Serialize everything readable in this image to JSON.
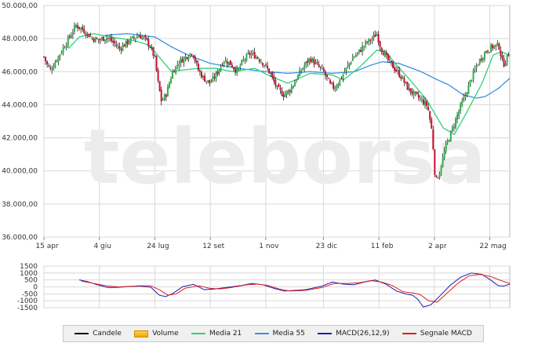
{
  "chart_data": [
    {
      "type": "candlestick",
      "ylim": [
        36000,
        50000
      ],
      "yticks": [
        "36.000,00",
        "38.000,00",
        "40.000,00",
        "42.000,00",
        "44.000,00",
        "46.000,00",
        "48.000,00",
        "50.000,00"
      ],
      "ytick_values": [
        36000,
        38000,
        40000,
        42000,
        44000,
        46000,
        48000,
        50000
      ],
      "x_range_days": [
        0,
        420
      ],
      "xticks": [
        "15 apr",
        "4 giu",
        "24 lug",
        "12 set",
        "1 nov",
        "23 dic",
        "11 feb",
        "2 apr",
        "22 mag"
      ],
      "xtick_days": [
        0,
        50,
        100,
        150,
        200,
        252,
        302,
        352,
        402
      ],
      "close_anchors": [
        [
          0,
          46900
        ],
        [
          3,
          46400
        ],
        [
          6,
          46100
        ],
        [
          12,
          46800
        ],
        [
          18,
          47500
        ],
        [
          24,
          48200
        ],
        [
          29,
          48800
        ],
        [
          34,
          48600
        ],
        [
          39,
          48300
        ],
        [
          44,
          48000
        ],
        [
          50,
          47900
        ],
        [
          56,
          48100
        ],
        [
          62,
          47800
        ],
        [
          68,
          47400
        ],
        [
          74,
          47700
        ],
        [
          80,
          48000
        ],
        [
          86,
          48200
        ],
        [
          92,
          47900
        ],
        [
          96,
          47500
        ],
        [
          100,
          46800
        ],
        [
          103,
          45300
        ],
        [
          106,
          44200
        ],
        [
          110,
          44600
        ],
        [
          116,
          46000
        ],
        [
          122,
          46600
        ],
        [
          128,
          46900
        ],
        [
          134,
          47200
        ],
        [
          139,
          46100
        ],
        [
          144,
          45600
        ],
        [
          150,
          45300
        ],
        [
          156,
          45900
        ],
        [
          162,
          46700
        ],
        [
          168,
          46500
        ],
        [
          174,
          46000
        ],
        [
          180,
          46700
        ],
        [
          186,
          47100
        ],
        [
          192,
          46900
        ],
        [
          198,
          46500
        ],
        [
          204,
          45900
        ],
        [
          210,
          45000
        ],
        [
          216,
          44600
        ],
        [
          222,
          44900
        ],
        [
          228,
          45600
        ],
        [
          234,
          46300
        ],
        [
          240,
          46800
        ],
        [
          246,
          46400
        ],
        [
          252,
          46000
        ],
        [
          258,
          45200
        ],
        [
          262,
          45000
        ],
        [
          266,
          45400
        ],
        [
          272,
          46100
        ],
        [
          278,
          46800
        ],
        [
          284,
          47200
        ],
        [
          290,
          47700
        ],
        [
          296,
          48000
        ],
        [
          300,
          48300
        ],
        [
          304,
          47400
        ],
        [
          310,
          46700
        ],
        [
          316,
          46200
        ],
        [
          322,
          45700
        ],
        [
          328,
          45000
        ],
        [
          334,
          44600
        ],
        [
          340,
          44300
        ],
        [
          346,
          43900
        ],
        [
          350,
          42300
        ],
        [
          353,
          39300
        ],
        [
          357,
          40000
        ],
        [
          362,
          41400
        ],
        [
          368,
          42500
        ],
        [
          374,
          43600
        ],
        [
          380,
          44600
        ],
        [
          386,
          45700
        ],
        [
          392,
          46600
        ],
        [
          398,
          47200
        ],
        [
          404,
          47500
        ],
        [
          410,
          47600
        ],
        [
          414,
          46400
        ],
        [
          418,
          46900
        ],
        [
          420,
          47200
        ]
      ],
      "ma21_anchors": [
        [
          22,
          47400
        ],
        [
          32,
          48100
        ],
        [
          45,
          48300
        ],
        [
          60,
          48100
        ],
        [
          80,
          47900
        ],
        [
          95,
          47600
        ],
        [
          105,
          46800
        ],
        [
          115,
          46000
        ],
        [
          125,
          46100
        ],
        [
          140,
          46200
        ],
        [
          155,
          46200
        ],
        [
          170,
          46000
        ],
        [
          190,
          46200
        ],
        [
          205,
          45700
        ],
        [
          220,
          45300
        ],
        [
          240,
          45900
        ],
        [
          260,
          45800
        ],
        [
          270,
          45500
        ],
        [
          285,
          46300
        ],
        [
          300,
          47300
        ],
        [
          308,
          47200
        ],
        [
          318,
          46400
        ],
        [
          330,
          45500
        ],
        [
          345,
          44300
        ],
        [
          360,
          42600
        ],
        [
          370,
          42200
        ],
        [
          380,
          43400
        ],
        [
          395,
          45300
        ],
        [
          405,
          47000
        ],
        [
          412,
          47200
        ],
        [
          420,
          47000
        ]
      ],
      "ma55_anchors": [
        [
          55,
          48200
        ],
        [
          75,
          48300
        ],
        [
          100,
          48100
        ],
        [
          115,
          47500
        ],
        [
          130,
          47000
        ],
        [
          150,
          46500
        ],
        [
          175,
          46200
        ],
        [
          200,
          46000
        ],
        [
          220,
          45900
        ],
        [
          240,
          46000
        ],
        [
          260,
          45900
        ],
        [
          280,
          46000
        ],
        [
          295,
          46400
        ],
        [
          305,
          46600
        ],
        [
          320,
          46500
        ],
        [
          340,
          46000
        ],
        [
          355,
          45500
        ],
        [
          365,
          45200
        ],
        [
          378,
          44600
        ],
        [
          390,
          44400
        ],
        [
          398,
          44500
        ],
        [
          410,
          45000
        ],
        [
          420,
          45600
        ]
      ]
    },
    {
      "type": "line",
      "ylim": [
        -1500,
        1500
      ],
      "yticks": [
        "1500",
        "1000",
        "500",
        "0",
        "-500",
        "-1000",
        "-1500"
      ],
      "ytick_values": [
        1500,
        1000,
        500,
        0,
        -500,
        -1000,
        -1500
      ],
      "series": [
        {
          "name": "MACD(26,12,9)",
          "color": "#1d1fa8",
          "points": [
            [
              33,
              500
            ],
            [
              40,
              400
            ],
            [
              50,
              150
            ],
            [
              60,
              -50
            ],
            [
              70,
              -30
            ],
            [
              80,
              30
            ],
            [
              90,
              50
            ],
            [
              100,
              -20
            ],
            [
              108,
              -600
            ],
            [
              114,
              -700
            ],
            [
              120,
              -500
            ],
            [
              130,
              20
            ],
            [
              140,
              180
            ],
            [
              150,
              -200
            ],
            [
              160,
              -150
            ],
            [
              170,
              -50
            ],
            [
              185,
              100
            ],
            [
              195,
              250
            ],
            [
              205,
              150
            ],
            [
              215,
              -100
            ],
            [
              225,
              -300
            ],
            [
              235,
              -250
            ],
            [
              245,
              -200
            ],
            [
              260,
              50
            ],
            [
              270,
              350
            ],
            [
              280,
              200
            ],
            [
              290,
              150
            ],
            [
              300,
              350
            ],
            [
              310,
              500
            ],
            [
              320,
              200
            ],
            [
              330,
              -300
            ],
            [
              338,
              -500
            ],
            [
              345,
              -600
            ],
            [
              350,
              -900
            ],
            [
              355,
              -1450
            ],
            [
              362,
              -1300
            ],
            [
              370,
              -700
            ],
            [
              380,
              100
            ],
            [
              390,
              700
            ],
            [
              400,
              1000
            ],
            [
              410,
              900
            ],
            [
              418,
              500
            ],
            [
              425,
              100
            ],
            [
              430,
              50
            ],
            [
              436,
              200
            ]
          ]
        },
        {
          "name": "Segnale MACD",
          "color": "#e02020",
          "points": [
            [
              35,
              420
            ],
            [
              50,
              200
            ],
            [
              60,
              60
            ],
            [
              70,
              0
            ],
            [
              80,
              40
            ],
            [
              90,
              80
            ],
            [
              100,
              80
            ],
            [
              108,
              -200
            ],
            [
              116,
              -600
            ],
            [
              124,
              -500
            ],
            [
              132,
              -100
            ],
            [
              145,
              80
            ],
            [
              155,
              -100
            ],
            [
              165,
              -150
            ],
            [
              175,
              -50
            ],
            [
              190,
              150
            ],
            [
              200,
              200
            ],
            [
              210,
              100
            ],
            [
              220,
              -150
            ],
            [
              230,
              -300
            ],
            [
              245,
              -250
            ],
            [
              260,
              -50
            ],
            [
              272,
              250
            ],
            [
              285,
              250
            ],
            [
              295,
              300
            ],
            [
              306,
              450
            ],
            [
              316,
              350
            ],
            [
              326,
              100
            ],
            [
              336,
              -350
            ],
            [
              346,
              -450
            ],
            [
              352,
              -550
            ],
            [
              360,
              -1000
            ],
            [
              368,
              -1100
            ],
            [
              378,
              -400
            ],
            [
              388,
              300
            ],
            [
              398,
              800
            ],
            [
              408,
              900
            ],
            [
              418,
              750
            ],
            [
              428,
              450
            ],
            [
              436,
              250
            ]
          ]
        }
      ]
    }
  ],
  "watermark": "teleborsa",
  "legend": [
    {
      "label": "Candele",
      "color": "#000000",
      "kind": "line"
    },
    {
      "label": "Volume",
      "color": "#f5a300",
      "kind": "box"
    },
    {
      "label": "Media 21",
      "color": "#2fd07a",
      "kind": "line"
    },
    {
      "label": "Media 55",
      "color": "#3b8fe0",
      "kind": "line"
    },
    {
      "label": "MACD(26,12,9)",
      "color": "#1d1fa8",
      "kind": "line"
    },
    {
      "label": "Segnale MACD",
      "color": "#e02020",
      "kind": "line"
    }
  ],
  "colors": {
    "up": "#2db24a",
    "down": "#c8102e",
    "wick": "#000000",
    "grid": "#d8d8d8",
    "ma21": "#2fd07a",
    "ma55": "#3b8fe0"
  }
}
